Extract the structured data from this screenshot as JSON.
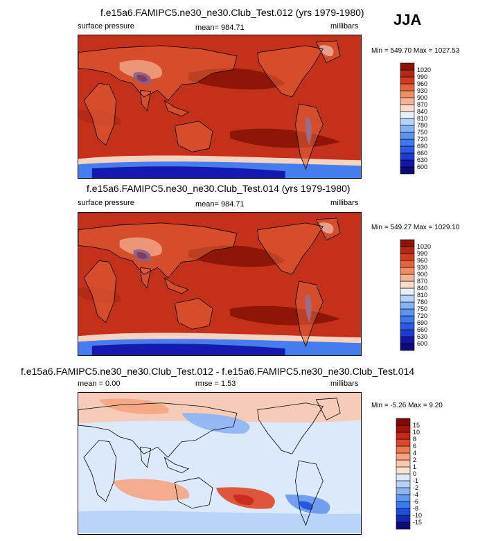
{
  "season": "JJA",
  "chart_data": [
    {
      "type": "heatmap",
      "title": "f.e15a6.FAMIPC5.ne30_ne30.Club_Test.012 (yrs 1979-1980)",
      "left_label": "surface pressure",
      "center_label": "mean= 984.71",
      "units": "millibars",
      "min_max": "Min = 549.70 Max = 1027.53",
      "colorbar_levels": [
        "600",
        "630",
        "660",
        "690",
        "720",
        "750",
        "780",
        "810",
        "840",
        "870",
        "900",
        "930",
        "960",
        "990",
        "1020"
      ],
      "colorbar_colors": [
        "#0a0a78",
        "#1414aa",
        "#1e3cd2",
        "#285ae6",
        "#3c78f0",
        "#5a96f0",
        "#82b4f5",
        "#b4d2fa",
        "#e6f0fa",
        "#fadcc8",
        "#f5b496",
        "#f08c64",
        "#e6643c",
        "#d23c1e",
        "#b42814",
        "#8c1405"
      ],
      "field_mean_color": "#c4311a"
    },
    {
      "type": "heatmap",
      "title": "f.e15a6.FAMIPC5.ne30_ne30.Club_Test.014 (yrs 1979-1980)",
      "left_label": "surface pressure",
      "center_label": "mean= 984.71",
      "units": "millibars",
      "min_max": "Min = 549.27 Max = 1029.10",
      "colorbar_levels": [
        "600",
        "630",
        "660",
        "690",
        "720",
        "750",
        "780",
        "810",
        "840",
        "870",
        "900",
        "930",
        "960",
        "990",
        "1020"
      ],
      "colorbar_colors": [
        "#0a0a78",
        "#1414aa",
        "#1e3cd2",
        "#285ae6",
        "#3c78f0",
        "#5a96f0",
        "#82b4f5",
        "#b4d2fa",
        "#e6f0fa",
        "#fadcc8",
        "#f5b496",
        "#f08c64",
        "#e6643c",
        "#d23c1e",
        "#b42814",
        "#8c1405"
      ],
      "field_mean_color": "#c4311a"
    },
    {
      "type": "heatmap",
      "title": "f.e15a6.FAMIPC5.ne30_ne30.Club_Test.012 - f.e15a6.FAMIPC5.ne30_ne30.Club_Test.014",
      "left_label": "mean =   0.00",
      "center_label": "rmse =   1.53",
      "units": "millibars",
      "min_max": "Min =  -5.26 Max =   9.20",
      "colorbar_levels": [
        "-15",
        "-10",
        "-8",
        "-6",
        "-4",
        "-2",
        "-1",
        "0",
        "1",
        "2",
        "4",
        "6",
        "8",
        "10",
        "15"
      ],
      "colorbar_colors": [
        "#0a0a78",
        "#1428b4",
        "#1e50dc",
        "#3c78f0",
        "#6496f0",
        "#8cb4f5",
        "#b4d2fa",
        "#dce9fb",
        "#fbe1d2",
        "#f8c8af",
        "#f5a582",
        "#ee7850",
        "#e04628",
        "#c8281a",
        "#a0140a",
        "#820a05"
      ],
      "field_mean_color": "#dce9fb"
    }
  ]
}
